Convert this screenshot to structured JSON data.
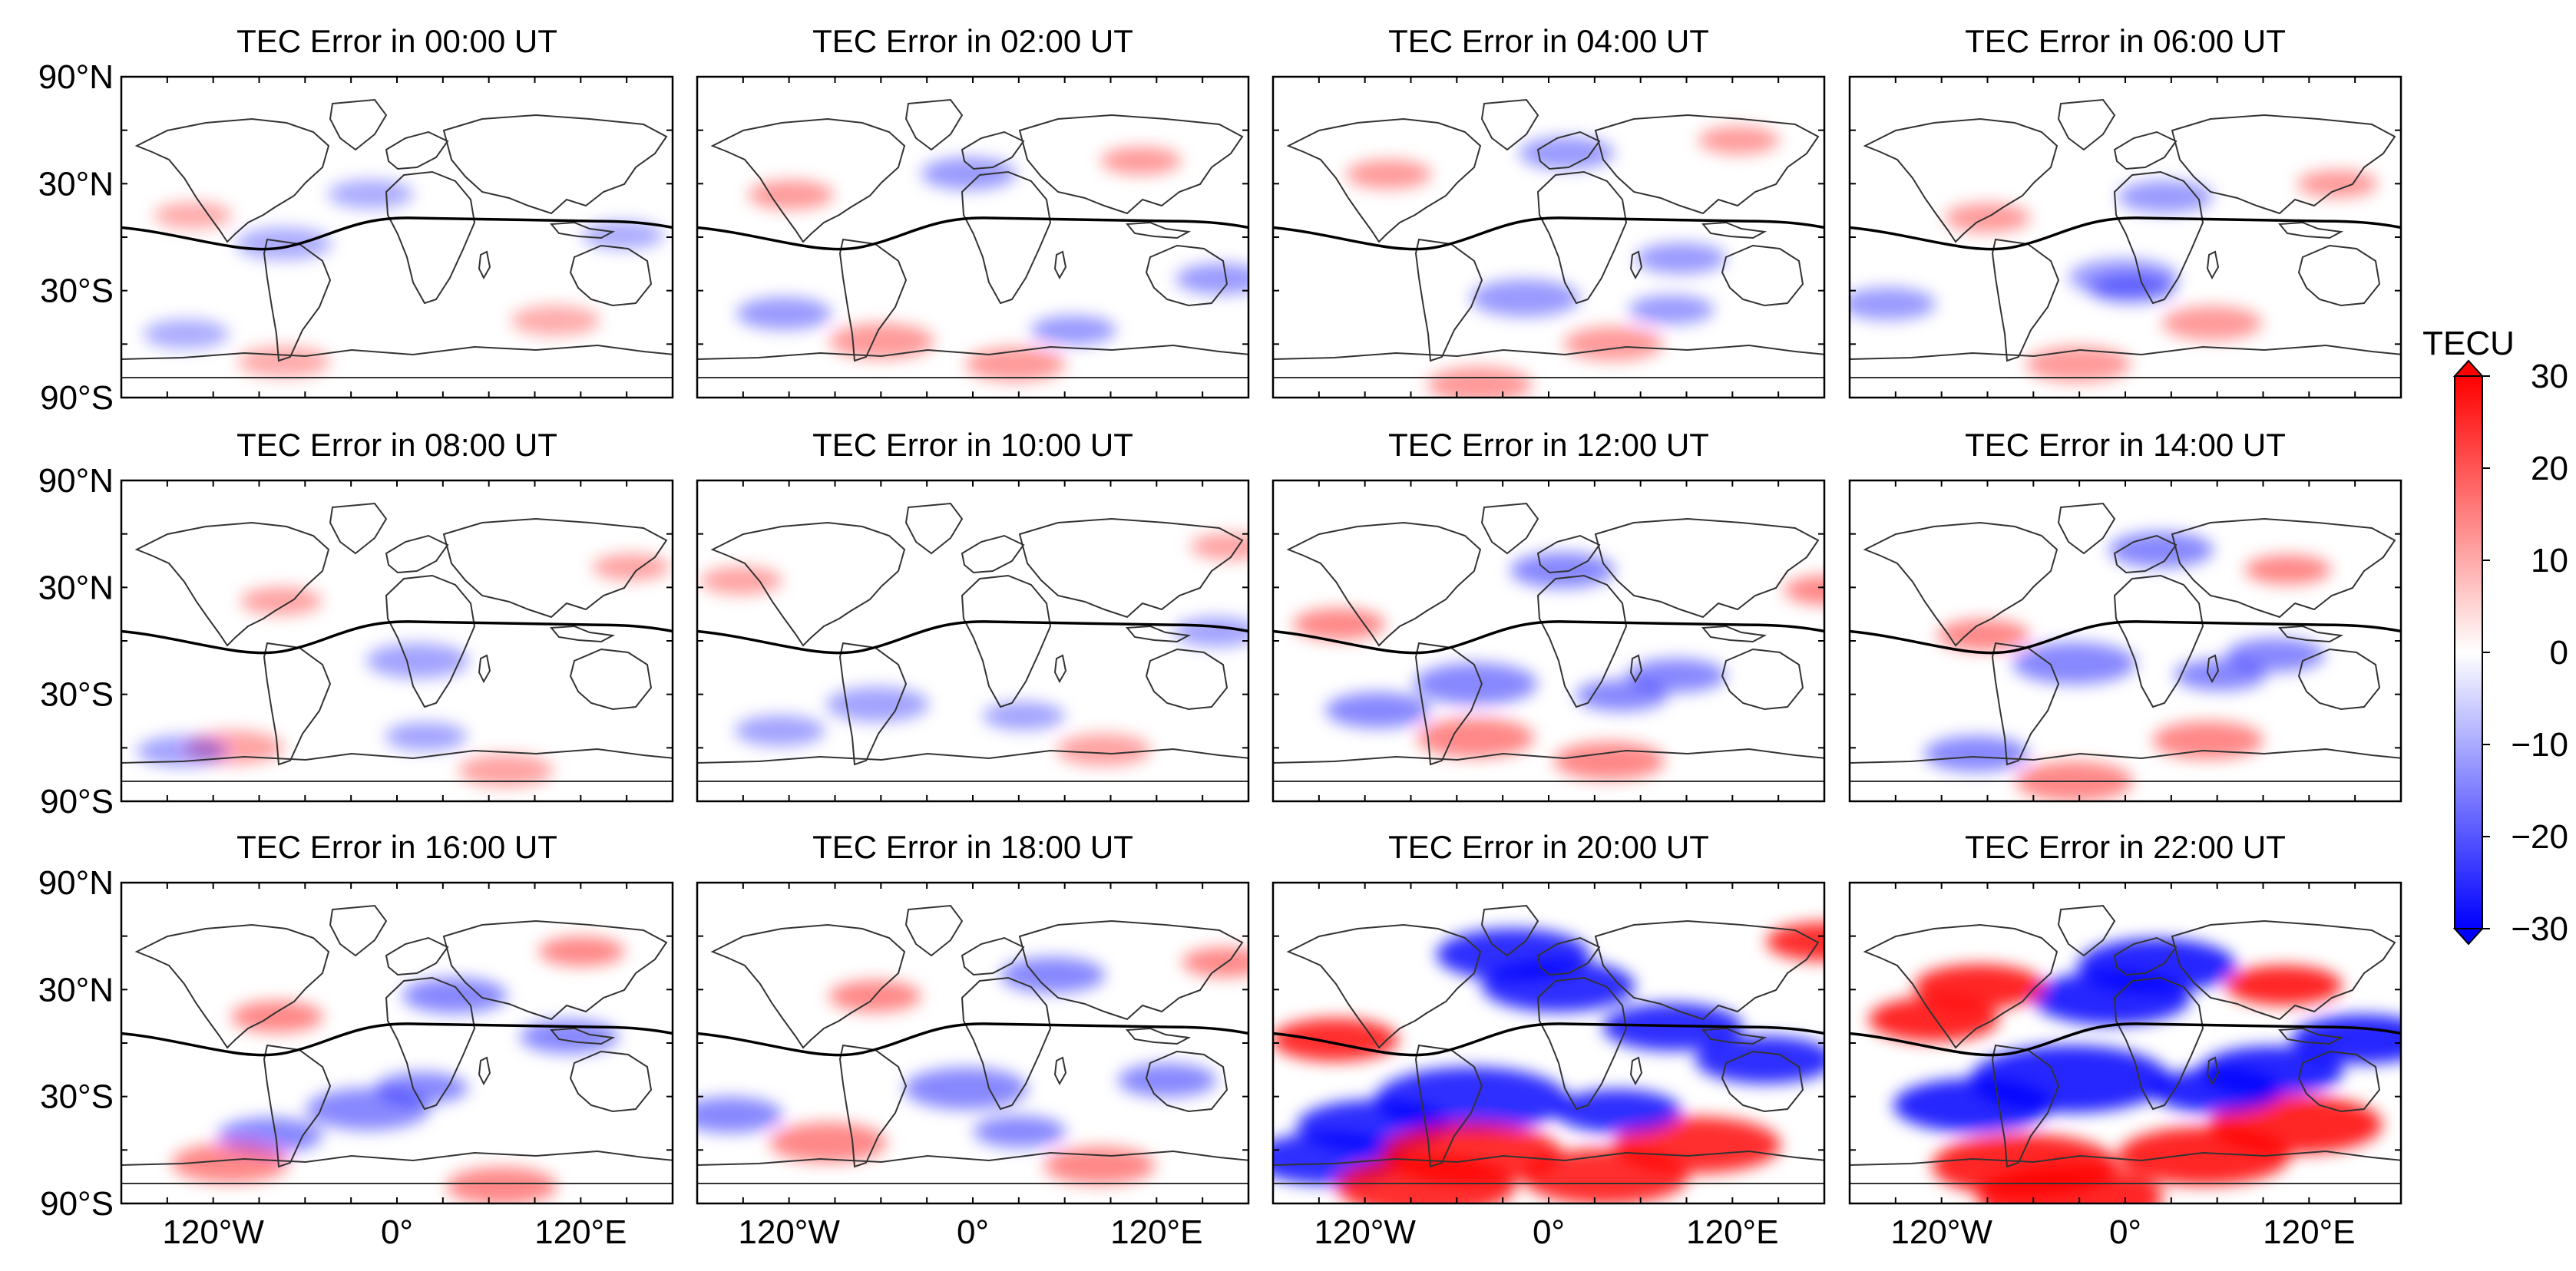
{
  "chart_data": {
    "type": "heatmap",
    "figure_description_panels": "3x4 grid of global maps of TEC error with magnetic equator line",
    "panels": [
      {
        "title": "TEC Error in 00:00 UT",
        "hour": 0,
        "intensity": 0.25
      },
      {
        "title": "TEC Error in 02:00 UT",
        "hour": 2,
        "intensity": 0.35
      },
      {
        "title": "TEC Error in 04:00 UT",
        "hour": 4,
        "intensity": 0.35
      },
      {
        "title": "TEC Error in 06:00 UT",
        "hour": 6,
        "intensity": 0.35
      },
      {
        "title": "TEC Error in 08:00 UT",
        "hour": 8,
        "intensity": 0.3
      },
      {
        "title": "TEC Error in 10:00 UT",
        "hour": 10,
        "intensity": 0.3
      },
      {
        "title": "TEC Error in 12:00 UT",
        "hour": 12,
        "intensity": 0.45
      },
      {
        "title": "TEC Error in 14:00 UT",
        "hour": 14,
        "intensity": 0.45
      },
      {
        "title": "TEC Error in 16:00 UT",
        "hour": 16,
        "intensity": 0.45
      },
      {
        "title": "TEC Error in 18:00 UT",
        "hour": 18,
        "intensity": 0.45
      },
      {
        "title": "TEC Error in 20:00 UT",
        "hour": 20,
        "intensity": 0.95
      },
      {
        "title": "TEC Error in 22:00 UT",
        "hour": 22,
        "intensity": 1.0
      }
    ],
    "yticks": [
      "90°N",
      "30°N",
      "30°S",
      "90°S"
    ],
    "xticks": [
      "120°W",
      "0°",
      "120°E"
    ],
    "colorbar": {
      "label": "TECU",
      "min": -30,
      "max": 30,
      "ticks": [
        "30",
        "20",
        "10",
        "0",
        "−10",
        "−20",
        "−30"
      ],
      "colors": {
        "low": "#0000ff",
        "mid": "#ffffff",
        "high": "#ff0000"
      }
    },
    "style": {
      "line_color": "#000000",
      "coast_color": "#333333"
    }
  }
}
